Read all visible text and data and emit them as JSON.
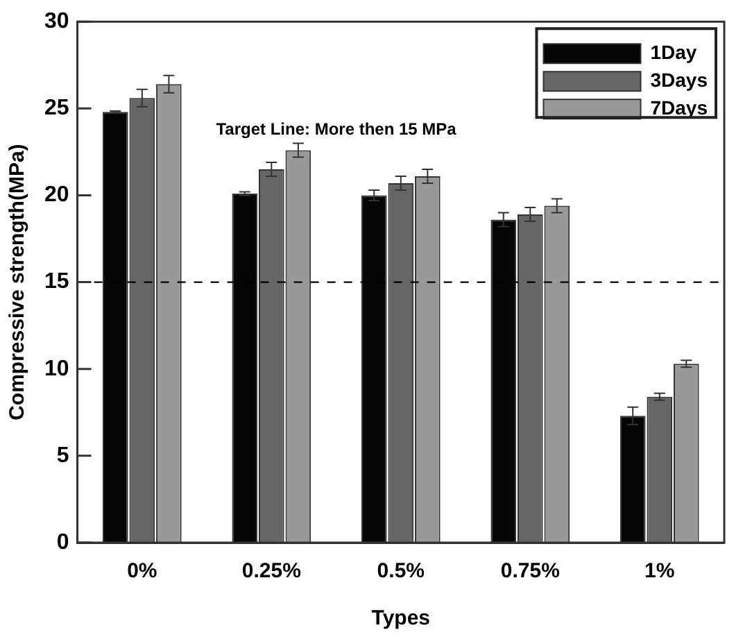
{
  "chart_data": {
    "type": "bar",
    "xlabel": "Types",
    "ylabel": "Compressive strength(MPa)",
    "categories": [
      "0%",
      "0.25%",
      "0.5%",
      "0.75%",
      "1%"
    ],
    "series": [
      {
        "name": "1Day",
        "color": "#050505",
        "values": [
          24.8,
          20.1,
          20.0,
          18.6,
          7.3
        ],
        "errors": [
          0.05,
          0.1,
          0.3,
          0.4,
          0.5
        ]
      },
      {
        "name": "3Days",
        "color": "#666666",
        "values": [
          25.6,
          21.5,
          20.7,
          18.9,
          8.4
        ],
        "errors": [
          0.5,
          0.4,
          0.4,
          0.4,
          0.2
        ]
      },
      {
        "name": "7Days",
        "color": "#999999",
        "values": [
          26.4,
          22.6,
          21.1,
          19.4,
          10.3
        ],
        "errors": [
          0.5,
          0.4,
          0.4,
          0.4,
          0.2
        ]
      }
    ],
    "ylim": [
      0,
      30
    ],
    "yticks": [
      0,
      5,
      10,
      15,
      20,
      25,
      30
    ],
    "ref_lines": [
      {
        "axis": "y",
        "value": 15,
        "line_style": "dashed",
        "color": "#000000"
      }
    ],
    "annotations": [
      "Target Line: More then 15 MPa"
    ],
    "grid": false,
    "legend": "top right"
  }
}
